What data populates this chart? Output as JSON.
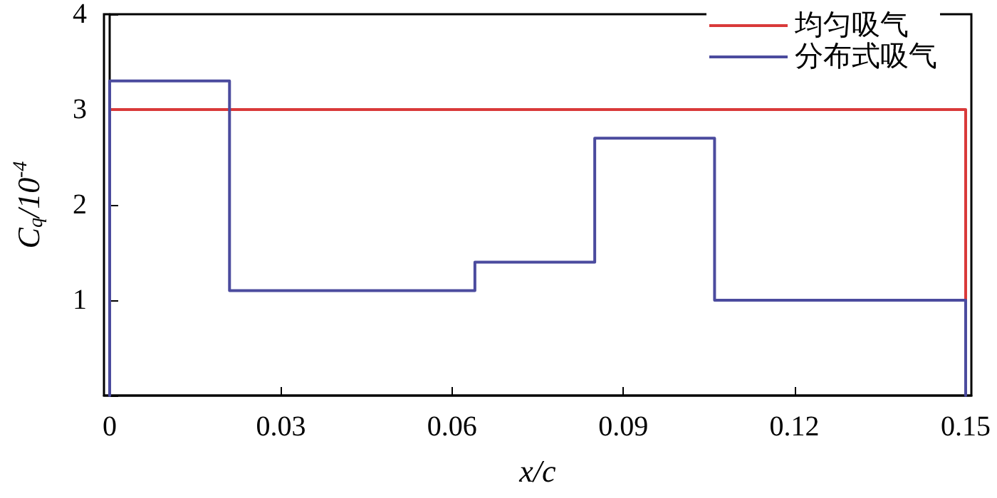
{
  "chart_data": {
    "type": "line",
    "xlabel": "x/c",
    "ylabel": "C$_{q}$/10$^{-4}$",
    "xlim": [
      -0.001,
      0.151
    ],
    "xticks": [
      0,
      0.03,
      0.06,
      0.09,
      0.12,
      0.15
    ],
    "ylim": [
      0,
      4
    ],
    "yticks": [
      {
        "value": 0,
        "label": null
      },
      1,
      2,
      3,
      4
    ],
    "series": [
      {
        "name": "均匀吸气",
        "color": "#d93a3a",
        "x": [
          0,
          0.15,
          0.15
        ],
        "values": [
          3,
          3,
          1
        ]
      },
      {
        "name": "分布式吸气",
        "color": "#4b4b9e",
        "x": [
          0,
          0,
          0.021,
          0.021,
          0.064,
          0.064,
          0.085,
          0.085,
          0.106,
          0.106,
          0.15,
          0.15
        ],
        "values": [
          0,
          3.3,
          3.3,
          1.1,
          1.1,
          1.4,
          1.4,
          2.7,
          2.7,
          1.0,
          1.0,
          0
        ]
      }
    ],
    "legend": "top right",
    "marker": "none",
    "line_style": "solid"
  }
}
